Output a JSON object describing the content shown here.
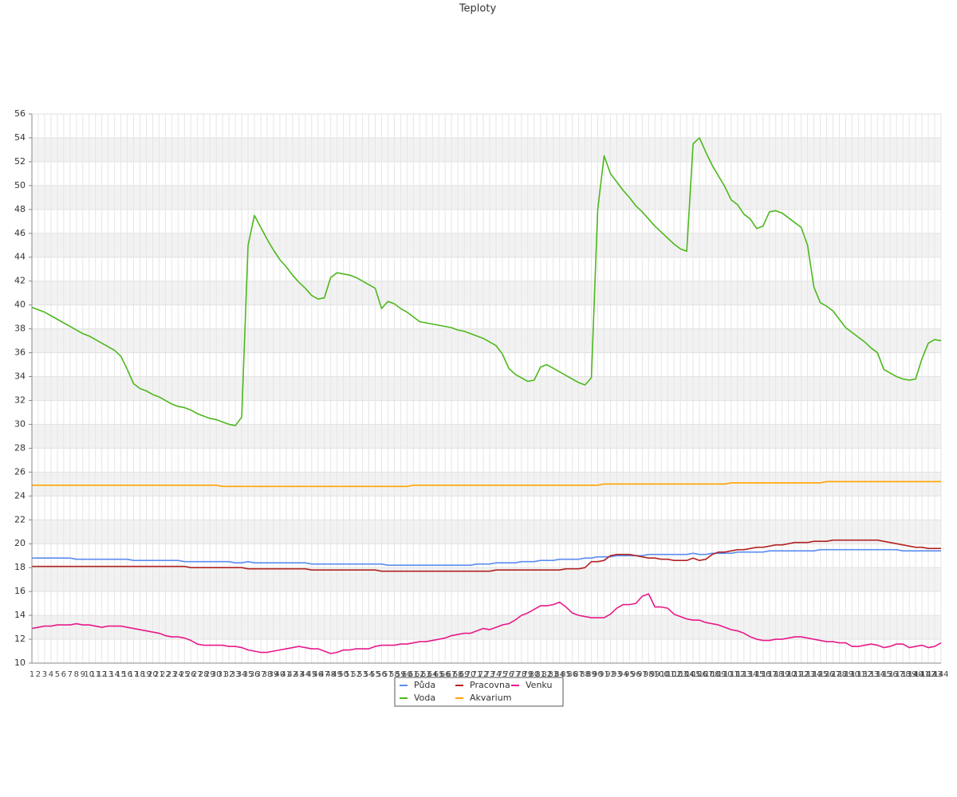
{
  "chart_data": {
    "type": "line",
    "title": "Teploty",
    "categories": [
      1,
      2,
      3,
      4,
      5,
      6,
      7,
      8,
      9,
      10,
      11,
      12,
      13,
      14,
      15,
      16,
      17,
      18,
      19,
      20,
      21,
      22,
      23,
      24,
      25,
      26,
      27,
      28,
      29,
      30,
      31,
      32,
      33,
      34,
      35,
      36,
      37,
      38,
      39,
      40,
      41,
      42,
      43,
      44,
      45,
      46,
      47,
      48,
      49,
      50,
      51,
      52,
      53,
      54,
      55,
      56,
      57,
      58,
      59,
      60,
      61,
      62,
      63,
      64,
      65,
      66,
      67,
      68,
      69,
      70,
      71,
      72,
      73,
      74,
      75,
      76,
      77,
      78,
      79,
      80,
      81,
      82,
      83,
      84,
      85,
      86,
      87,
      88,
      89,
      90,
      91,
      92,
      93,
      94,
      95,
      96,
      97,
      98,
      99,
      100,
      101,
      102,
      103,
      104,
      105,
      106,
      107,
      108,
      109,
      110,
      111,
      112,
      113,
      114,
      115,
      116,
      117,
      118,
      119,
      120,
      121,
      122,
      123,
      124,
      125,
      126,
      127,
      128,
      129,
      130,
      131,
      132,
      133,
      134,
      135,
      136,
      137,
      138,
      139,
      140,
      141,
      142,
      143,
      144
    ],
    "ylim": [
      10,
      56
    ],
    "yticks": [
      10,
      12,
      14,
      16,
      18,
      20,
      22,
      24,
      26,
      28,
      30,
      32,
      34,
      36,
      38,
      40,
      42,
      44,
      46,
      48,
      50,
      52,
      54,
      56
    ],
    "grid": true,
    "legend": "bottom",
    "series": [
      {
        "name": "Půda",
        "color": "#5b8def",
        "values": [
          18.8,
          18.8,
          18.8,
          18.8,
          18.8,
          18.8,
          18.8,
          18.7,
          18.7,
          18.7,
          18.7,
          18.7,
          18.7,
          18.7,
          18.7,
          18.7,
          18.6,
          18.6,
          18.6,
          18.6,
          18.6,
          18.6,
          18.6,
          18.6,
          18.5,
          18.5,
          18.5,
          18.5,
          18.5,
          18.5,
          18.5,
          18.5,
          18.4,
          18.4,
          18.5,
          18.4,
          18.4,
          18.4,
          18.4,
          18.4,
          18.4,
          18.4,
          18.4,
          18.4,
          18.3,
          18.3,
          18.3,
          18.3,
          18.3,
          18.3,
          18.3,
          18.3,
          18.3,
          18.3,
          18.3,
          18.3,
          18.2,
          18.2,
          18.2,
          18.2,
          18.2,
          18.2,
          18.2,
          18.2,
          18.2,
          18.2,
          18.2,
          18.2,
          18.2,
          18.2,
          18.3,
          18.3,
          18.3,
          18.4,
          18.4,
          18.4,
          18.4,
          18.5,
          18.5,
          18.5,
          18.6,
          18.6,
          18.6,
          18.7,
          18.7,
          18.7,
          18.7,
          18.8,
          18.8,
          18.9,
          18.9,
          18.9,
          19.0,
          19.0,
          19.0,
          19.0,
          19.0,
          19.1,
          19.1,
          19.1,
          19.1,
          19.1,
          19.1,
          19.1,
          19.2,
          19.1,
          19.1,
          19.2,
          19.2,
          19.2,
          19.2,
          19.3,
          19.3,
          19.3,
          19.3,
          19.3,
          19.4,
          19.4,
          19.4,
          19.4,
          19.4,
          19.4,
          19.4,
          19.4,
          19.5,
          19.5,
          19.5,
          19.5,
          19.5,
          19.5,
          19.5,
          19.5,
          19.5,
          19.5,
          19.5,
          19.5,
          19.5,
          19.4,
          19.4,
          19.4,
          19.4,
          19.4,
          19.4,
          19.4
        ]
      },
      {
        "name": "Voda",
        "color": "#4cb81c",
        "values": [
          39.8,
          39.6,
          39.4,
          39.1,
          38.8,
          38.5,
          38.2,
          37.9,
          37.6,
          37.4,
          37.1,
          36.8,
          36.5,
          36.2,
          35.7,
          34.6,
          33.4,
          33.0,
          32.8,
          32.5,
          32.3,
          32.0,
          31.7,
          31.5,
          31.4,
          31.2,
          30.9,
          30.7,
          30.5,
          30.4,
          30.2,
          30.0,
          29.9,
          30.6,
          45.0,
          47.5,
          46.5,
          45.5,
          44.6,
          43.8,
          43.2,
          42.5,
          41.9,
          41.4,
          40.8,
          40.5,
          40.6,
          42.3,
          42.7,
          42.6,
          42.5,
          42.3,
          42.0,
          41.7,
          41.4,
          39.7,
          40.3,
          40.1,
          39.7,
          39.4,
          39.0,
          38.6,
          38.5,
          38.4,
          38.3,
          38.2,
          38.1,
          37.9,
          37.8,
          37.6,
          37.4,
          37.2,
          36.9,
          36.6,
          35.9,
          34.7,
          34.2,
          33.9,
          33.6,
          33.7,
          34.8,
          35.0,
          34.7,
          34.4,
          34.1,
          33.8,
          33.5,
          33.3,
          33.9,
          48.0,
          52.5,
          51.0,
          50.3,
          49.6,
          49.0,
          48.3,
          47.8,
          47.2,
          46.6,
          46.1,
          45.6,
          45.1,
          44.7,
          44.5,
          53.5,
          54.0,
          52.8,
          51.7,
          50.8,
          49.9,
          48.8,
          48.4,
          47.6,
          47.2,
          46.4,
          46.6,
          47.8,
          47.9,
          47.7,
          47.3,
          46.9,
          46.5,
          45.0,
          41.5,
          40.2,
          39.9,
          39.5,
          38.8,
          38.1,
          37.7,
          37.3,
          36.9,
          36.4,
          36.0,
          34.6,
          34.3,
          34.0,
          33.8,
          33.7,
          33.8,
          35.5,
          36.8,
          37.1,
          37.0
        ]
      },
      {
        "name": "Pracovna",
        "color": "#b22222",
        "values": [
          18.1,
          18.1,
          18.1,
          18.1,
          18.1,
          18.1,
          18.1,
          18.1,
          18.1,
          18.1,
          18.1,
          18.1,
          18.1,
          18.1,
          18.1,
          18.1,
          18.1,
          18.1,
          18.1,
          18.1,
          18.1,
          18.1,
          18.1,
          18.1,
          18.1,
          18.0,
          18.0,
          18.0,
          18.0,
          18.0,
          18.0,
          18.0,
          18.0,
          18.0,
          17.9,
          17.9,
          17.9,
          17.9,
          17.9,
          17.9,
          17.9,
          17.9,
          17.9,
          17.9,
          17.8,
          17.8,
          17.8,
          17.8,
          17.8,
          17.8,
          17.8,
          17.8,
          17.8,
          17.8,
          17.8,
          17.7,
          17.7,
          17.7,
          17.7,
          17.7,
          17.7,
          17.7,
          17.7,
          17.7,
          17.7,
          17.7,
          17.7,
          17.7,
          17.7,
          17.7,
          17.7,
          17.7,
          17.7,
          17.8,
          17.8,
          17.8,
          17.8,
          17.8,
          17.8,
          17.8,
          17.8,
          17.8,
          17.8,
          17.8,
          17.9,
          17.9,
          17.9,
          18.0,
          18.5,
          18.5,
          18.6,
          19.0,
          19.1,
          19.1,
          19.1,
          19.0,
          18.9,
          18.8,
          18.8,
          18.7,
          18.7,
          18.6,
          18.6,
          18.6,
          18.8,
          18.6,
          18.7,
          19.1,
          19.3,
          19.3,
          19.4,
          19.5,
          19.5,
          19.6,
          19.7,
          19.7,
          19.8,
          19.9,
          19.9,
          20.0,
          20.1,
          20.1,
          20.1,
          20.2,
          20.2,
          20.2,
          20.3,
          20.3,
          20.3,
          20.3,
          20.3,
          20.3,
          20.3,
          20.3,
          20.2,
          20.1,
          20.0,
          19.9,
          19.8,
          19.7,
          19.7,
          19.6,
          19.6,
          19.6
        ]
      },
      {
        "name": "Akvarium",
        "color": "#ffa500",
        "values": [
          24.9,
          24.9,
          24.9,
          24.9,
          24.9,
          24.9,
          24.9,
          24.9,
          24.9,
          24.9,
          24.9,
          24.9,
          24.9,
          24.9,
          24.9,
          24.9,
          24.9,
          24.9,
          24.9,
          24.9,
          24.9,
          24.9,
          24.9,
          24.9,
          24.9,
          24.9,
          24.9,
          24.9,
          24.9,
          24.9,
          24.8,
          24.8,
          24.8,
          24.8,
          24.8,
          24.8,
          24.8,
          24.8,
          24.8,
          24.8,
          24.8,
          24.8,
          24.8,
          24.8,
          24.8,
          24.8,
          24.8,
          24.8,
          24.8,
          24.8,
          24.8,
          24.8,
          24.8,
          24.8,
          24.8,
          24.8,
          24.8,
          24.8,
          24.8,
          24.8,
          24.9,
          24.9,
          24.9,
          24.9,
          24.9,
          24.9,
          24.9,
          24.9,
          24.9,
          24.9,
          24.9,
          24.9,
          24.9,
          24.9,
          24.9,
          24.9,
          24.9,
          24.9,
          24.9,
          24.9,
          24.9,
          24.9,
          24.9,
          24.9,
          24.9,
          24.9,
          24.9,
          24.9,
          24.9,
          24.9,
          25.0,
          25.0,
          25.0,
          25.0,
          25.0,
          25.0,
          25.0,
          25.0,
          25.0,
          25.0,
          25.0,
          25.0,
          25.0,
          25.0,
          25.0,
          25.0,
          25.0,
          25.0,
          25.0,
          25.0,
          25.1,
          25.1,
          25.1,
          25.1,
          25.1,
          25.1,
          25.1,
          25.1,
          25.1,
          25.1,
          25.1,
          25.1,
          25.1,
          25.1,
          25.1,
          25.2,
          25.2,
          25.2,
          25.2,
          25.2,
          25.2,
          25.2,
          25.2,
          25.2,
          25.2,
          25.2,
          25.2,
          25.2,
          25.2,
          25.2,
          25.2,
          25.2,
          25.2,
          25.2
        ]
      },
      {
        "name": "Venku",
        "color": "#e8198b",
        "values": [
          12.9,
          13.0,
          13.1,
          13.1,
          13.2,
          13.2,
          13.2,
          13.3,
          13.2,
          13.2,
          13.1,
          13.0,
          13.1,
          13.1,
          13.1,
          13.0,
          12.9,
          12.8,
          12.7,
          12.6,
          12.5,
          12.3,
          12.2,
          12.2,
          12.1,
          11.9,
          11.6,
          11.5,
          11.5,
          11.5,
          11.5,
          11.4,
          11.4,
          11.3,
          11.1,
          11.0,
          10.9,
          10.9,
          11.0,
          11.1,
          11.2,
          11.3,
          11.4,
          11.3,
          11.2,
          11.2,
          11.0,
          10.8,
          10.9,
          11.1,
          11.1,
          11.2,
          11.2,
          11.2,
          11.4,
          11.5,
          11.5,
          11.5,
          11.6,
          11.6,
          11.7,
          11.8,
          11.8,
          11.9,
          12.0,
          12.1,
          12.3,
          12.4,
          12.5,
          12.5,
          12.7,
          12.9,
          12.8,
          13.0,
          13.2,
          13.3,
          13.6,
          14.0,
          14.2,
          14.5,
          14.8,
          14.8,
          14.9,
          15.1,
          14.7,
          14.2,
          14.0,
          13.9,
          13.8,
          13.8,
          13.8,
          14.1,
          14.6,
          14.9,
          14.9,
          15.0,
          15.6,
          15.8,
          14.7,
          14.7,
          14.6,
          14.1,
          13.9,
          13.7,
          13.6,
          13.6,
          13.4,
          13.3,
          13.2,
          13.0,
          12.8,
          12.7,
          12.5,
          12.2,
          12.0,
          11.9,
          11.9,
          12.0,
          12.0,
          12.1,
          12.2,
          12.2,
          12.1,
          12.0,
          11.9,
          11.8,
          11.8,
          11.7,
          11.7,
          11.4,
          11.4,
          11.5,
          11.6,
          11.5,
          11.3,
          11.4,
          11.6,
          11.6,
          11.3,
          11.4,
          11.5,
          11.3,
          11.4,
          11.7
        ]
      }
    ]
  }
}
